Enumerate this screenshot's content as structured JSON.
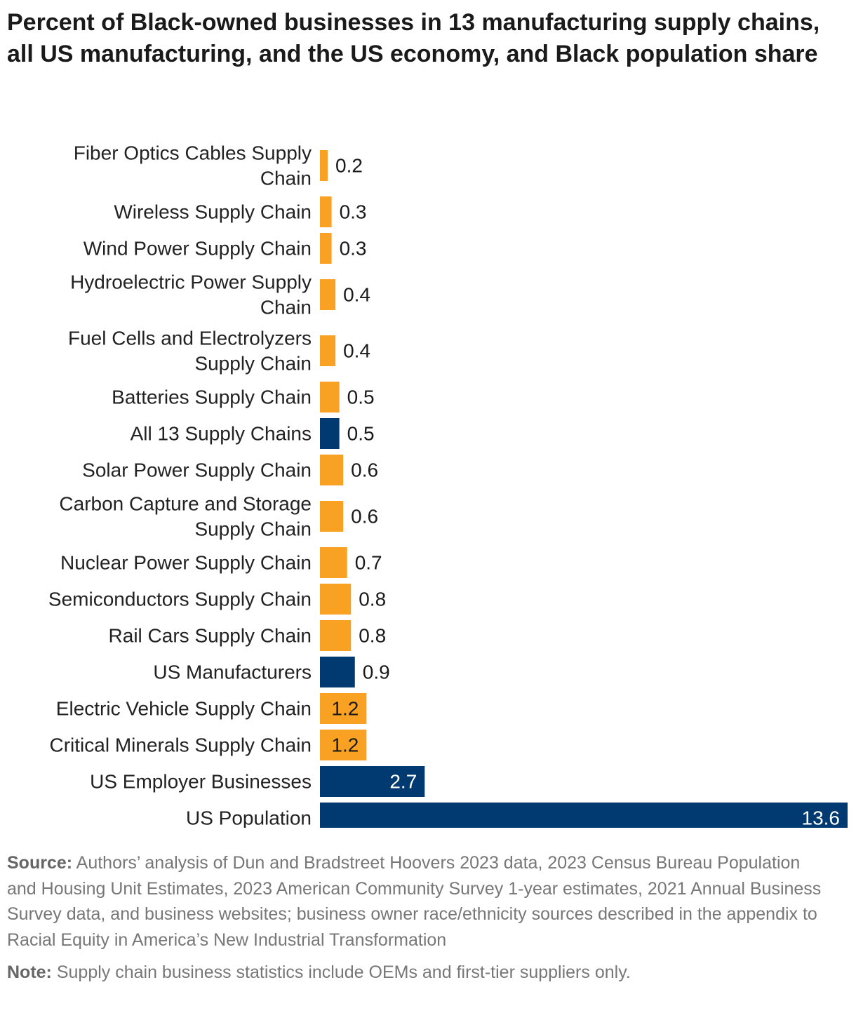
{
  "chart_data": {
    "type": "bar",
    "orientation": "horizontal",
    "title": "Percent of Black-owned businesses in 13 manufacturing supply chains, all US manufacturing, and the US economy, and Black population share",
    "xlabel": "",
    "ylabel": "",
    "xlim": [
      0,
      13.6
    ],
    "grid": false,
    "legend": "none",
    "categories": [
      [
        "Fiber Optics Cables Supply",
        "Chain"
      ],
      [
        "Wireless Supply Chain"
      ],
      [
        "Wind Power Supply Chain"
      ],
      [
        "Hydroelectric Power Supply",
        "Chain"
      ],
      [
        "Fuel Cells and Electrolyzers",
        "Supply Chain"
      ],
      [
        "Batteries Supply Chain"
      ],
      [
        "All 13 Supply Chains"
      ],
      [
        "Solar Power Supply Chain"
      ],
      [
        "Carbon Capture and Storage",
        "Supply Chain"
      ],
      [
        "Nuclear Power Supply Chain"
      ],
      [
        "Semiconductors Supply Chain"
      ],
      [
        "Rail Cars Supply Chain"
      ],
      [
        "US Manufacturers"
      ],
      [
        "Electric Vehicle Supply Chain"
      ],
      [
        "Critical Minerals Supply Chain"
      ],
      [
        "US Employer Businesses"
      ],
      [
        "US Population"
      ]
    ],
    "values": [
      0.2,
      0.3,
      0.3,
      0.4,
      0.4,
      0.5,
      0.5,
      0.6,
      0.6,
      0.7,
      0.8,
      0.8,
      0.9,
      1.2,
      1.2,
      2.7,
      13.6
    ],
    "value_labels": [
      "0.2",
      "0.3",
      "0.3",
      "0.4",
      "0.4",
      "0.5",
      "0.5",
      "0.6",
      "0.6",
      "0.7",
      "0.8",
      "0.8",
      "0.9",
      "1.2",
      "1.2",
      "2.7",
      "13.6"
    ],
    "bar_groups": [
      "supply_chain",
      "supply_chain",
      "supply_chain",
      "supply_chain",
      "supply_chain",
      "supply_chain",
      "benchmark",
      "supply_chain",
      "supply_chain",
      "supply_chain",
      "supply_chain",
      "supply_chain",
      "benchmark",
      "supply_chain",
      "supply_chain",
      "benchmark",
      "benchmark"
    ],
    "colors": {
      "supply_chain": "#f9a123",
      "benchmark": "#003a70",
      "label_outside": "#1a1a1a",
      "label_on_orange": "#1a1a1a",
      "label_on_blue": "#ffffff"
    }
  },
  "footer": {
    "source_label": "Source:",
    "source_text": " Authors’ analysis of Dun and Bradstreet Hoovers 2023 data, 2023 Census Bureau Population and Housing Unit Estimates, 2023 American Community Survey 1-year estimates, 2021 Annual Business Survey data, and business websites; business owner race/ethnicity sources described in the appendix to Racial Equity in America’s New Industrial Transformation",
    "note_label": "Note:",
    "note_text": " Supply chain business statistics include OEMs and first-tier suppliers only."
  }
}
